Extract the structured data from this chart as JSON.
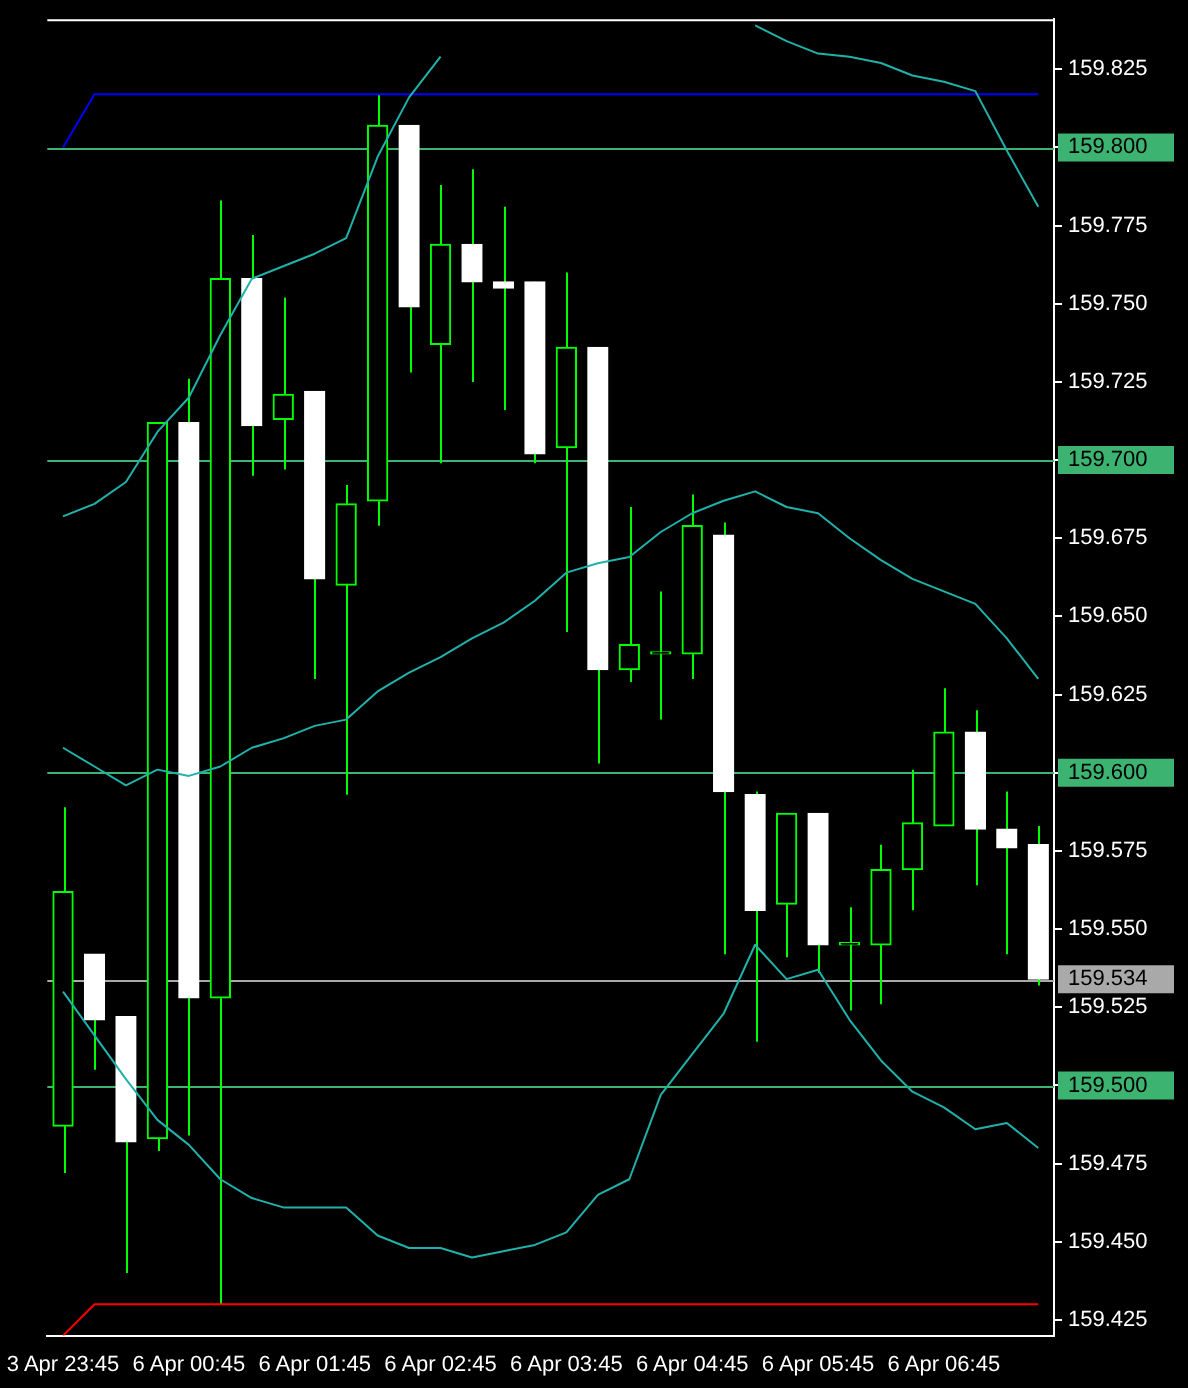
{
  "chart_data": {
    "type": "candlestick",
    "categories": [
      "3 Apr 23:45",
      null,
      null,
      null,
      "6 Apr 00:45",
      null,
      null,
      null,
      "6 Apr 01:45",
      null,
      null,
      null,
      "6 Apr 02:45",
      null,
      null,
      null,
      "6 Apr 03:45",
      null,
      null,
      null,
      "6 Apr 04:45",
      null,
      null,
      null,
      "6 Apr 05:45",
      null,
      null,
      null,
      "6 Apr 06:45",
      null,
      null,
      null
    ],
    "series": [
      {
        "type": "line",
        "color": "#20b2aa",
        "values": [
          159.682,
          159.686,
          159.693,
          159.709,
          159.72,
          159.74,
          159.758,
          159.762,
          159.766,
          159.771,
          159.797,
          159.816,
          159.829,
          null,
          null,
          null,
          null,
          null,
          null,
          null,
          null,
          null,
          159.839,
          159.834,
          159.83,
          159.829,
          159.827,
          159.823,
          159.821,
          159.818,
          159.799,
          159.781
        ]
      },
      {
        "type": "line",
        "color": "#20b2aa",
        "values": [
          159.608,
          159.602,
          159.596,
          159.601,
          159.599,
          159.602,
          159.608,
          159.611,
          159.615,
          159.617,
          159.626,
          159.632,
          159.637,
          159.643,
          159.648,
          159.655,
          159.664,
          159.667,
          159.669,
          159.677,
          159.683,
          159.687,
          159.69,
          159.685,
          159.683,
          159.675,
          159.668,
          159.662,
          159.658,
          159.654,
          159.643,
          159.63
        ]
      },
      {
        "type": "line",
        "color": "#20b2aa",
        "values": [
          159.53,
          159.516,
          159.502,
          159.489,
          159.481,
          159.47,
          159.464,
          159.461,
          159.461,
          159.461,
          159.452,
          159.448,
          159.448,
          159.445,
          159.447,
          159.449,
          159.453,
          159.465,
          159.47,
          159.497,
          159.51,
          159.523,
          159.545,
          159.534,
          159.537,
          159.521,
          159.508,
          159.498,
          159.493,
          159.486,
          159.488,
          159.48
        ]
      },
      {
        "type": "line",
        "color": "#0000ff",
        "values": [
          159.8,
          159.817,
          159.817,
          159.817,
          159.817,
          159.817,
          159.817,
          159.817,
          159.817,
          159.817,
          159.817,
          159.817,
          159.817,
          159.817,
          159.817,
          159.817,
          159.817,
          159.817,
          159.817,
          159.817,
          159.817,
          159.817,
          159.817,
          159.817,
          159.817,
          159.817,
          159.817,
          159.817,
          159.817,
          159.817,
          159.817,
          159.817
        ]
      },
      {
        "type": "line",
        "color": "#ff0000",
        "values": [
          159.42,
          159.43,
          159.43,
          159.43,
          159.43,
          159.43,
          159.43,
          159.43,
          159.43,
          159.43,
          159.43,
          159.43,
          159.43,
          159.43,
          159.43,
          159.43,
          159.43,
          159.43,
          159.43,
          159.43,
          159.43,
          159.43,
          159.43,
          159.43,
          159.43,
          159.43,
          159.43,
          159.43,
          159.43,
          159.43,
          159.43,
          159.43
        ]
      },
      {
        "color": "#00ff00",
        "colors": [
          "#00ff00",
          "#ffffff",
          "#ffffff",
          "#00ff00",
          "#ffffff",
          "#00ff00",
          "#ffffff",
          "#00ff00",
          "#ffffff",
          "#00ff00",
          "#00ff00",
          "#ffffff",
          "#00ff00",
          "#ffffff",
          "#ffffff",
          "#ffffff",
          "#00ff00",
          "#ffffff",
          "#00ff00",
          "#00ff00",
          "#00ff00",
          "#ffffff",
          "#ffffff",
          "#00ff00",
          "#ffffff",
          "#00ff00",
          "#00ff00",
          "#00ff00",
          "#00ff00",
          "#ffffff",
          "#ffffff",
          "#ffffff"
        ],
        "ohlc": [
          [
            159.487,
            159.589,
            159.472,
            159.562
          ],
          [
            159.542,
            159.542,
            159.505,
            159.521
          ],
          [
            159.522,
            159.522,
            159.44,
            159.482
          ],
          [
            159.483,
            159.712,
            159.479,
            159.712
          ],
          [
            159.712,
            159.726,
            159.484,
            159.528
          ],
          [
            159.528,
            159.783,
            159.43,
            159.758
          ],
          [
            159.758,
            159.772,
            159.695,
            159.711
          ],
          [
            159.713,
            159.752,
            159.697,
            159.721
          ],
          [
            159.722,
            159.722,
            159.63,
            159.662
          ],
          [
            159.66,
            159.692,
            159.593,
            159.686
          ],
          [
            159.687,
            159.817,
            159.679,
            159.807
          ],
          [
            159.807,
            159.807,
            159.728,
            159.749
          ],
          [
            159.737,
            159.788,
            159.699,
            159.769
          ],
          [
            159.769,
            159.793,
            159.725,
            159.757
          ],
          [
            159.757,
            159.781,
            159.716,
            159.755
          ],
          [
            159.757,
            159.757,
            159.699,
            159.702
          ],
          [
            159.704,
            159.76,
            159.645,
            159.736
          ],
          [
            159.736,
            159.736,
            159.603,
            159.633
          ],
          [
            159.633,
            159.685,
            159.629,
            159.641
          ],
          [
            159.638,
            159.658,
            159.617,
            159.638
          ],
          [
            159.638,
            159.689,
            159.63,
            159.679
          ],
          [
            159.676,
            159.68,
            159.542,
            159.594
          ],
          [
            159.593,
            159.594,
            159.514,
            159.556
          ],
          [
            159.558,
            159.587,
            159.541,
            159.587
          ],
          [
            159.587,
            159.587,
            159.536,
            159.545
          ],
          [
            159.545,
            159.557,
            159.524,
            159.545
          ],
          [
            159.545,
            159.577,
            159.526,
            159.569
          ],
          [
            159.569,
            159.601,
            159.556,
            159.584
          ],
          [
            159.583,
            159.627,
            159.583,
            159.613
          ],
          [
            159.613,
            159.62,
            159.564,
            159.582
          ],
          [
            159.582,
            159.594,
            159.542,
            159.576
          ],
          [
            159.577,
            159.583,
            159.532,
            159.534
          ]
        ]
      }
    ],
    "ylim": [
      159.42,
      159.841
    ],
    "yticks": [
      {
        "value": 159.425,
        "label": "159.425"
      },
      {
        "value": 159.45,
        "label": "159.450"
      },
      {
        "value": 159.475,
        "label": "159.475"
      },
      {
        "value": 159.5,
        "label": null
      },
      {
        "value": 159.525,
        "label": "159.525"
      },
      {
        "value": 159.55,
        "label": "159.550"
      },
      {
        "value": 159.575,
        "label": "159.575"
      },
      {
        "value": 159.6,
        "label": null
      },
      {
        "value": 159.625,
        "label": "159.625"
      },
      {
        "value": 159.65,
        "label": "159.650"
      },
      {
        "value": 159.675,
        "label": "159.675"
      },
      {
        "value": 159.7,
        "label": null
      },
      {
        "value": 159.725,
        "label": "159.725"
      },
      {
        "value": 159.75,
        "label": "159.750"
      },
      {
        "value": 159.775,
        "label": "159.775"
      },
      {
        "value": 159.8,
        "label": null
      },
      {
        "value": 159.825,
        "label": "159.825"
      }
    ],
    "ref_lines": [
      {
        "axis": "y",
        "value": 159.8,
        "label": "159.800",
        "color": "#3cb371"
      },
      {
        "axis": "y",
        "value": 159.7,
        "label": "159.700",
        "color": "#3cb371"
      },
      {
        "axis": "y",
        "value": 159.6,
        "label": "159.600",
        "color": "#3cb371"
      },
      {
        "axis": "y",
        "value": 159.5,
        "label": "159.500",
        "color": "#3cb371"
      },
      {
        "axis": "y",
        "value": 159.534,
        "label": "159.534",
        "color": "#a9a9a9"
      }
    ]
  }
}
